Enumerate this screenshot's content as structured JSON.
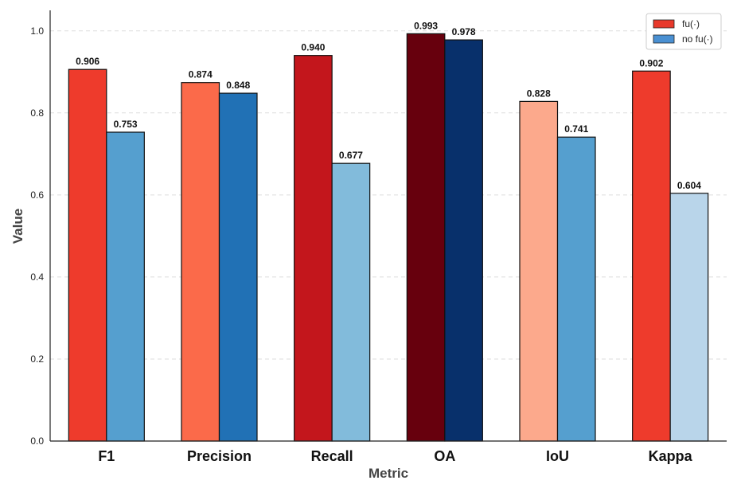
{
  "chart_data": {
    "type": "bar",
    "xlabel": "Metric",
    "ylabel": "Value",
    "categories": [
      "F1",
      "Precision",
      "Recall",
      "OA",
      "IoU",
      "Kappa"
    ],
    "ylim": [
      0,
      1.05
    ],
    "yticks": [
      0.0,
      0.2,
      0.4,
      0.6,
      0.8,
      1.0
    ],
    "grid": "y-dashed",
    "legend_position": "top-right",
    "series": [
      {
        "name": "fu(·)",
        "legend_color": "#e8392b",
        "values": [
          0.906,
          0.874,
          0.94,
          0.993,
          0.828,
          0.902
        ],
        "labels": [
          "0.906",
          "0.874",
          "0.940",
          "0.993",
          "0.828",
          "0.902"
        ],
        "colors": [
          "#ee3b2c",
          "#fb6a4a",
          "#c3161c",
          "#67000d",
          "#fca98c",
          "#ee3b2c"
        ]
      },
      {
        "name": "no fu(·)",
        "legend_color": "#4a90d2",
        "values": [
          0.753,
          0.848,
          0.677,
          0.978,
          0.741,
          0.604
        ],
        "labels": [
          "0.753",
          "0.848",
          "0.677",
          "0.978",
          "0.741",
          "0.604"
        ],
        "colors": [
          "#559fcf",
          "#2171b5",
          "#82bbdb",
          "#08306b",
          "#559fcf",
          "#b9d5ea"
        ]
      }
    ]
  }
}
